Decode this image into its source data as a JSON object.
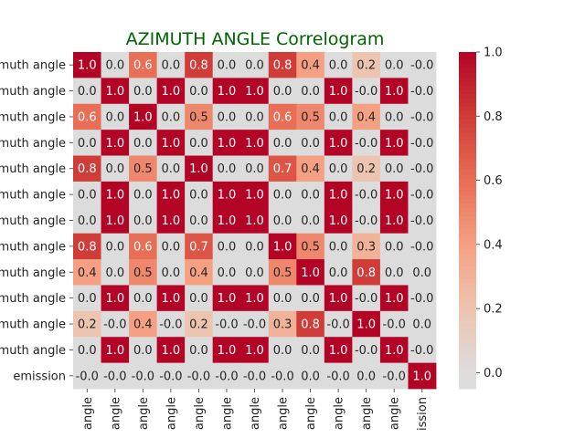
{
  "chart_data": {
    "type": "heatmap",
    "title": "AZIMUTH ANGLE Correlogram",
    "row_labels": [
      "muth angle",
      "muth angle",
      "muth angle",
      "muth angle",
      "muth angle",
      "muth angle",
      "muth angle",
      "muth angle",
      "muth angle",
      "muth angle",
      "muth angle",
      "muth angle",
      "emission"
    ],
    "col_labels": [
      "angle",
      "angle",
      "angle",
      "angle",
      "angle",
      "angle",
      "angle",
      "angle",
      "angle",
      "angle",
      "angle",
      "angle",
      "ission"
    ],
    "values": [
      [
        1.0,
        0.0,
        0.6,
        0.0,
        0.8,
        0.0,
        0.0,
        0.8,
        0.4,
        0.0,
        0.2,
        0.0,
        -0.0
      ],
      [
        0.0,
        1.0,
        0.0,
        1.0,
        0.0,
        1.0,
        1.0,
        0.0,
        0.0,
        1.0,
        -0.0,
        1.0,
        -0.0
      ],
      [
        0.6,
        0.0,
        1.0,
        0.0,
        0.5,
        0.0,
        0.0,
        0.6,
        0.5,
        0.0,
        0.4,
        0.0,
        -0.0
      ],
      [
        0.0,
        1.0,
        0.0,
        1.0,
        0.0,
        1.0,
        1.0,
        0.0,
        0.0,
        1.0,
        -0.0,
        1.0,
        -0.0
      ],
      [
        0.8,
        0.0,
        0.5,
        0.0,
        1.0,
        0.0,
        0.0,
        0.7,
        0.4,
        0.0,
        0.2,
        0.0,
        -0.0
      ],
      [
        0.0,
        1.0,
        0.0,
        1.0,
        0.0,
        1.0,
        1.0,
        0.0,
        0.0,
        1.0,
        -0.0,
        1.0,
        -0.0
      ],
      [
        0.0,
        1.0,
        0.0,
        1.0,
        0.0,
        1.0,
        1.0,
        0.0,
        0.0,
        1.0,
        -0.0,
        1.0,
        -0.0
      ],
      [
        0.8,
        0.0,
        0.6,
        0.0,
        0.7,
        0.0,
        0.0,
        1.0,
        0.5,
        0.0,
        0.3,
        0.0,
        -0.0
      ],
      [
        0.4,
        0.0,
        0.5,
        0.0,
        0.4,
        0.0,
        0.0,
        0.5,
        1.0,
        0.0,
        0.8,
        0.0,
        0.0
      ],
      [
        0.0,
        1.0,
        0.0,
        1.0,
        0.0,
        1.0,
        1.0,
        0.0,
        0.0,
        1.0,
        -0.0,
        1.0,
        -0.0
      ],
      [
        0.2,
        -0.0,
        0.4,
        -0.0,
        0.2,
        -0.0,
        -0.0,
        0.3,
        0.8,
        -0.0,
        1.0,
        -0.0,
        0.0
      ],
      [
        0.0,
        1.0,
        0.0,
        1.0,
        0.0,
        1.0,
        1.0,
        0.0,
        0.0,
        1.0,
        -0.0,
        1.0,
        -0.0
      ],
      [
        -0.0,
        -0.0,
        -0.0,
        -0.0,
        -0.0,
        -0.0,
        -0.0,
        -0.0,
        0.0,
        -0.0,
        0.0,
        -0.0,
        1.0
      ]
    ],
    "value_labels": [
      [
        "1.0",
        "0.0",
        "0.6",
        "0.0",
        "0.8",
        "0.0",
        "0.0",
        "0.8",
        "0.4",
        "0.0",
        "0.2",
        "0.0",
        "-0.0"
      ],
      [
        "0.0",
        "1.0",
        "0.0",
        "1.0",
        "0.0",
        "1.0",
        "1.0",
        "0.0",
        "0.0",
        "1.0",
        "-0.0",
        "1.0",
        "-0.0"
      ],
      [
        "0.6",
        "0.0",
        "1.0",
        "0.0",
        "0.5",
        "0.0",
        "0.0",
        "0.6",
        "0.5",
        "0.0",
        "0.4",
        "0.0",
        "-0.0"
      ],
      [
        "0.0",
        "1.0",
        "0.0",
        "1.0",
        "0.0",
        "1.0",
        "1.0",
        "0.0",
        "0.0",
        "1.0",
        "-0.0",
        "1.0",
        "-0.0"
      ],
      [
        "0.8",
        "0.0",
        "0.5",
        "0.0",
        "1.0",
        "0.0",
        "0.0",
        "0.7",
        "0.4",
        "0.0",
        "0.2",
        "0.0",
        "-0.0"
      ],
      [
        "0.0",
        "1.0",
        "0.0",
        "1.0",
        "0.0",
        "1.0",
        "1.0",
        "0.0",
        "0.0",
        "1.0",
        "-0.0",
        "1.0",
        "-0.0"
      ],
      [
        "0.0",
        "1.0",
        "0.0",
        "1.0",
        "0.0",
        "1.0",
        "1.0",
        "0.0",
        "0.0",
        "1.0",
        "-0.0",
        "1.0",
        "-0.0"
      ],
      [
        "0.8",
        "0.0",
        "0.6",
        "0.0",
        "0.7",
        "0.0",
        "0.0",
        "1.0",
        "0.5",
        "0.0",
        "0.3",
        "0.0",
        "-0.0"
      ],
      [
        "0.4",
        "0.0",
        "0.5",
        "0.0",
        "0.4",
        "0.0",
        "0.0",
        "0.5",
        "1.0",
        "0.0",
        "0.8",
        "0.0",
        "0.0"
      ],
      [
        "0.0",
        "1.0",
        "0.0",
        "1.0",
        "0.0",
        "1.0",
        "1.0",
        "0.0",
        "0.0",
        "1.0",
        "-0.0",
        "1.0",
        "-0.0"
      ],
      [
        "0.2",
        "-0.0",
        "0.4",
        "-0.0",
        "0.2",
        "-0.0",
        "-0.0",
        "0.3",
        "0.8",
        "-0.0",
        "1.0",
        "-0.0",
        "0.0"
      ],
      [
        "0.0",
        "1.0",
        "0.0",
        "1.0",
        "0.0",
        "1.0",
        "1.0",
        "0.0",
        "0.0",
        "1.0",
        "-0.0",
        "1.0",
        "-0.0"
      ],
      [
        "-0.0",
        "-0.0",
        "-0.0",
        "-0.0",
        "-0.0",
        "-0.0",
        "-0.0",
        "-0.0",
        "0.0",
        "-0.0",
        "0.0",
        "-0.0",
        "1.0"
      ]
    ],
    "colorbar": {
      "range": [
        -0.05,
        1.0
      ],
      "ticks": [
        0.0,
        0.2,
        0.4,
        0.6,
        0.8,
        1.0
      ],
      "tick_labels": [
        "0.0",
        "0.2",
        "0.4",
        "0.6",
        "0.8",
        "1.0"
      ]
    },
    "colormap": "coolwarm",
    "colors": {
      "title": "#006400",
      "low": "#dddcdc",
      "high": "#b40426"
    },
    "legend": "colorbar-right"
  }
}
